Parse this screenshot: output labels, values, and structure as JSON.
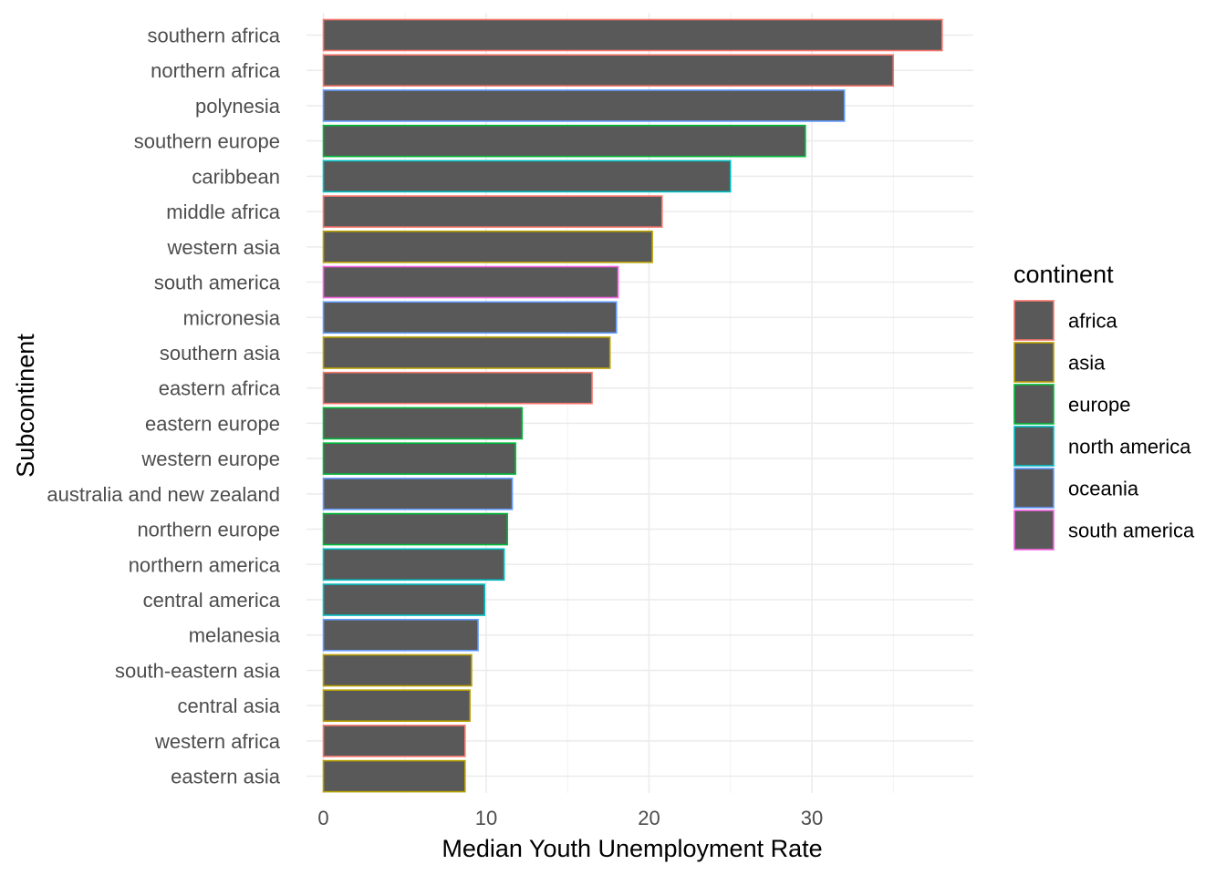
{
  "chart_data": {
    "type": "bar",
    "orientation": "horizontal",
    "xlabel": "Median Youth Unemployment Rate",
    "ylabel": "Subcontinent",
    "xlim": [
      0,
      40
    ],
    "x_ticks": [
      0,
      10,
      20,
      30
    ],
    "grid": true,
    "bar_fill": "#595959",
    "legend": {
      "title": "continent",
      "placement": "right",
      "entries": [
        {
          "name": "africa",
          "color": "#F8766D"
        },
        {
          "name": "asia",
          "color": "#B79F00"
        },
        {
          "name": "europe",
          "color": "#00BA38"
        },
        {
          "name": "north america",
          "color": "#00BFC4"
        },
        {
          "name": "oceania",
          "color": "#619CFF"
        },
        {
          "name": "south america",
          "color": "#F564E3"
        }
      ]
    },
    "categories": [
      "southern africa",
      "northern africa",
      "polynesia",
      "southern europe",
      "caribbean",
      "middle africa",
      "western asia",
      "south america",
      "micronesia",
      "southern asia",
      "eastern africa",
      "eastern europe",
      "western europe",
      "australia and new zealand",
      "northern europe",
      "northern america",
      "central america",
      "melanesia",
      "south-eastern asia",
      "central asia",
      "western africa",
      "eastern asia"
    ],
    "values": [
      38.0,
      35.0,
      32.0,
      29.6,
      25.0,
      20.8,
      20.2,
      18.1,
      18.0,
      17.6,
      16.5,
      12.2,
      11.8,
      11.6,
      11.3,
      11.1,
      9.9,
      9.5,
      9.1,
      9.0,
      8.7,
      8.7
    ],
    "continents": [
      "africa",
      "africa",
      "oceania",
      "europe",
      "north america",
      "africa",
      "asia",
      "south america",
      "oceania",
      "asia",
      "africa",
      "europe",
      "europe",
      "oceania",
      "europe",
      "north america",
      "north america",
      "oceania",
      "asia",
      "asia",
      "africa",
      "asia"
    ]
  }
}
